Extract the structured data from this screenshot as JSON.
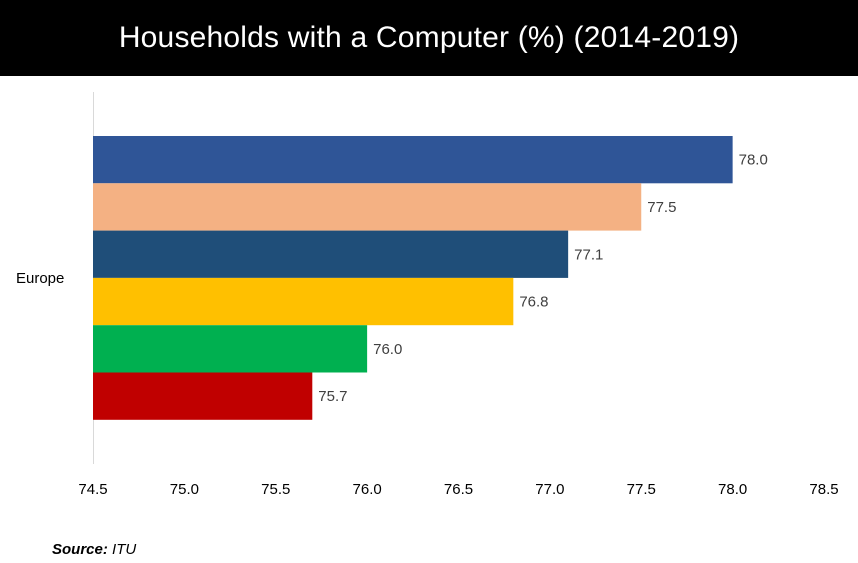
{
  "header": {
    "title": "Households with a Computer (%) (2014-2019)"
  },
  "footer": {
    "source_label": "Source:",
    "source_value": "ITU"
  },
  "chart_data": {
    "type": "bar",
    "orientation": "horizontal",
    "title": "Households with a Computer (%) (2014-2019)",
    "categories": [
      "Europe"
    ],
    "series": [
      {
        "values": [
          78.0
        ],
        "color": "#2F5597",
        "label": "78.0"
      },
      {
        "values": [
          77.5
        ],
        "color": "#F4B183",
        "label": "77.5"
      },
      {
        "values": [
          77.1
        ],
        "color": "#1F4E79",
        "label": "77.1"
      },
      {
        "values": [
          76.8
        ],
        "color": "#FFC000",
        "label": "76.8"
      },
      {
        "values": [
          76.0
        ],
        "color": "#00B050",
        "label": "76.0"
      },
      {
        "values": [
          75.7
        ],
        "color": "#C00000",
        "label": "75.7"
      }
    ],
    "xlim": [
      74.5,
      78.5
    ],
    "xticks": [
      "74.5",
      "75.0",
      "75.5",
      "76.0",
      "76.5",
      "77.0",
      "77.5",
      "78.0",
      "78.5"
    ],
    "grid": false,
    "legend": "none"
  }
}
